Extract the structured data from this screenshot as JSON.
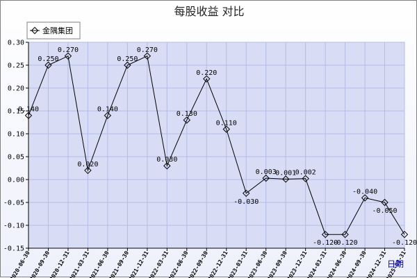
{
  "chart_data": {
    "type": "line",
    "title": "每股收益  对比",
    "x_axis_label": "日期",
    "legend_position": "top-left",
    "grid": true,
    "ylim": [
      -0.15,
      0.3
    ],
    "yticks": [
      "0.30",
      "0.25",
      "0.20",
      "0.15",
      "0.10",
      "0.05",
      "0.00",
      "-0.05",
      "-0.10",
      "-0.15"
    ],
    "categories": [
      "2020-06-30",
      "2020-09-30",
      "2020-12-31",
      "2021-03-31",
      "2021-06-30",
      "2021-09-30",
      "2021-12-31",
      "2022-03-31",
      "2022-06-30",
      "2022-09-30",
      "2022-12-31",
      "2023-03-31",
      "2023-06-30",
      "2023-09-30",
      "2023-12-31",
      "2024-03-31",
      "2024-06-30",
      "2024-09-30",
      "2024-12-31",
      "2025-03-31"
    ],
    "series": [
      {
        "name": "金隅集团",
        "color": "#000000",
        "marker": "diamond",
        "values": [
          0.14,
          0.25,
          0.27,
          0.02,
          0.14,
          0.25,
          0.27,
          0.03,
          0.13,
          0.22,
          0.11,
          -0.03,
          0.003,
          0.001,
          0.002,
          -0.12,
          -0.12,
          -0.04,
          -0.05,
          -0.12
        ],
        "labels": [
          "0.140",
          "0.250",
          "0.270",
          "0.020",
          "0.140",
          "0.250",
          "0.270",
          "0.030",
          "0.130",
          "0.220",
          "0.110",
          "-0.030",
          "0.003",
          "0.001",
          "0.002",
          "-0.120",
          "-0.120",
          "-0.040",
          "-0.050",
          "-0.120"
        ]
      }
    ]
  },
  "colors": {
    "plot_bg": "#d8dcf4",
    "grid": "#b4bce6",
    "line": "#000000"
  }
}
